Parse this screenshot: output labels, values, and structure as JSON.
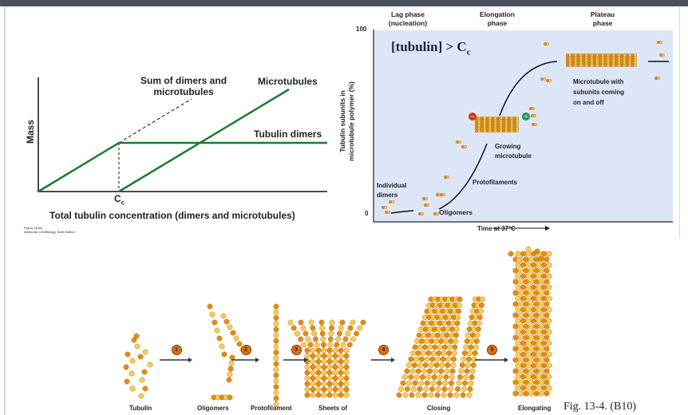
{
  "left_chart": {
    "y_label": "Mass",
    "x_label": "Total tubulin concentration (dimers and microtubules)",
    "cc_label": "C",
    "cc_sub": "c",
    "sum_label_1": "Sum of dimers and",
    "sum_label_2": "microtubules",
    "microtubules_label": "Microtubules",
    "dimers_label": "Tubulin dimers",
    "credit_1": "Figure 18-8a",
    "credit_2": "Molecular Cell Biology, Sixth Edition",
    "line_color": "#1e7a2e"
  },
  "right_chart": {
    "phase_lag_1": "Lag phase",
    "phase_lag_2": "(nucleation)",
    "phase_elong_1": "Elongation",
    "phase_elong_2": "phase",
    "phase_plateau_1": "Plateau",
    "phase_plateau_2": "phase",
    "y_max": "100",
    "y_min": "0",
    "y_label_1": "Tubulin subunits in",
    "y_label_2": "microtubule polymer (%)",
    "condition": "[tubulin] > C",
    "condition_sub": "c",
    "x_label": "Time at 37°C",
    "individual_1": "Individual",
    "individual_2": "dimers",
    "oligomers": "Oligomers",
    "protofilaments": "Protofilaments",
    "growing_1": "Growing",
    "growing_2": "microtubule",
    "mt_1": "Microtubule with",
    "mt_2": "subunits coming",
    "mt_3": "on and off",
    "bg_color": "#dde6f7"
  },
  "bottom": {
    "steps": [
      "1",
      "2",
      "3",
      "4",
      "5"
    ],
    "labels": [
      "Tubulin",
      "Oligomers",
      "Protofilament",
      "Sheets of",
      "Closing",
      "Elongating"
    ],
    "fig_label": "Fig. 13-4. (B10)"
  }
}
